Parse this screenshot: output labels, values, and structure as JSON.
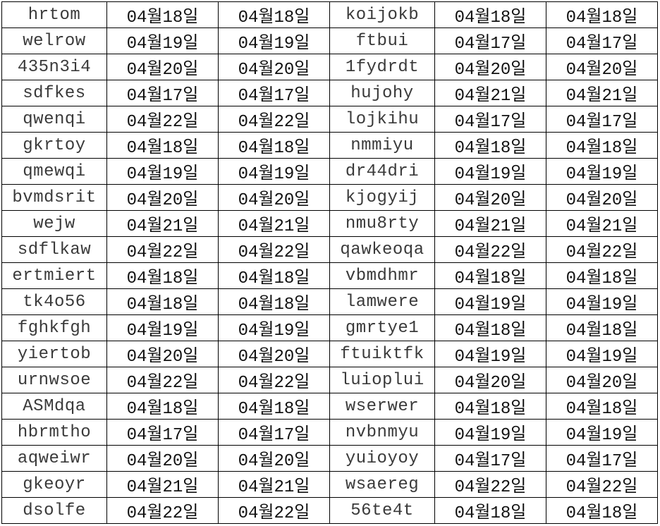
{
  "table": {
    "rows": [
      [
        "hrtom",
        "04월18일",
        "04월18일",
        "koijokb",
        "04월18일",
        "04월18일"
      ],
      [
        "welrow",
        "04월19일",
        "04월19일",
        "ftbui",
        "04월17일",
        "04월17일"
      ],
      [
        "435n3i4",
        "04월20일",
        "04월20일",
        "1fydrdt",
        "04월20일",
        "04월20일"
      ],
      [
        "sdfkes",
        "04월17일",
        "04월17일",
        "hujohy",
        "04월21일",
        "04월21일"
      ],
      [
        "qwenqi",
        "04월22일",
        "04월22일",
        "lojkihu",
        "04월17일",
        "04월17일"
      ],
      [
        "gkrtoy",
        "04월18일",
        "04월18일",
        "nmmiyu",
        "04월18일",
        "04월18일"
      ],
      [
        "qmewqi",
        "04월19일",
        "04월19일",
        "dr44dri",
        "04월19일",
        "04월19일"
      ],
      [
        "bvmdsrit",
        "04월20일",
        "04월20일",
        "kjogyij",
        "04월20일",
        "04월20일"
      ],
      [
        "wejw",
        "04월21일",
        "04월21일",
        "nmu8rty",
        "04월21일",
        "04월21일"
      ],
      [
        "sdflkaw",
        "04월22일",
        "04월22일",
        "qawkeoqa",
        "04월22일",
        "04월22일"
      ],
      [
        "ertmiert",
        "04월18일",
        "04월18일",
        "vbmdhmr",
        "04월18일",
        "04월18일"
      ],
      [
        "tk4o56",
        "04월18일",
        "04월18일",
        "lamwere",
        "04월19일",
        "04월19일"
      ],
      [
        "fghkfgh",
        "04월19일",
        "04월19일",
        "gmrtye1",
        "04월18일",
        "04월18일"
      ],
      [
        "yiertob",
        "04월20일",
        "04월20일",
        "ftuiktfk",
        "04월19일",
        "04월19일"
      ],
      [
        "urnwsoe",
        "04월22일",
        "04월22일",
        "luioplui",
        "04월20일",
        "04월20일"
      ],
      [
        "ASMdqa",
        "04월18일",
        "04월18일",
        "wserwer",
        "04월18일",
        "04월18일"
      ],
      [
        "hbrmtho",
        "04월17일",
        "04월17일",
        "nvbnmyu",
        "04월19일",
        "04월19일"
      ],
      [
        "aqweiwr",
        "04월20일",
        "04월20일",
        "yuioyoy",
        "04월17일",
        "04월17일"
      ],
      [
        "gkeoyr",
        "04월21일",
        "04월21일",
        "wsaereg",
        "04월22일",
        "04월22일"
      ],
      [
        "dsolfe",
        "04월22일",
        "04월22일",
        "56te4t",
        "04월18일",
        "04월18일"
      ]
    ]
  }
}
